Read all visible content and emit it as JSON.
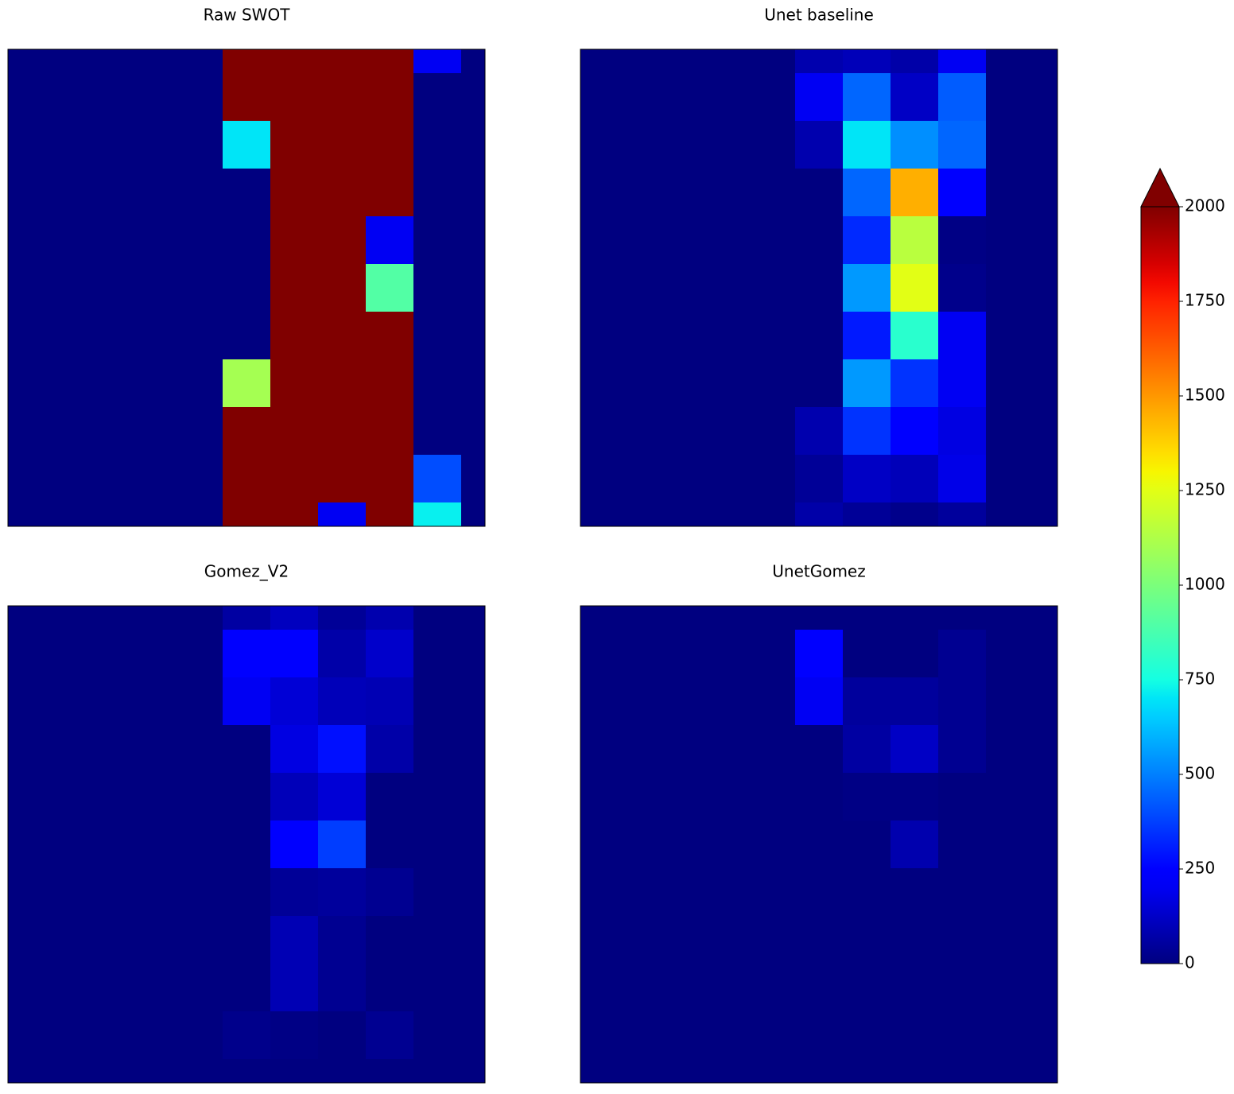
{
  "chart_data": [
    {
      "type": "heatmap",
      "title": "Raw SWOT",
      "z": [
        [
          0,
          0,
          0,
          0,
          0,
          2000,
          2000,
          2000,
          2000,
          200,
          0
        ],
        [
          0,
          0,
          0,
          0,
          0,
          2000,
          2000,
          2000,
          2000,
          0,
          0
        ],
        [
          0,
          0,
          0,
          0,
          0,
          700,
          2000,
          2000,
          2000,
          0,
          0
        ],
        [
          0,
          0,
          0,
          0,
          0,
          0,
          2000,
          2000,
          2000,
          0,
          0
        ],
        [
          0,
          0,
          0,
          0,
          0,
          0,
          2000,
          2000,
          200,
          0,
          0
        ],
        [
          0,
          0,
          0,
          0,
          0,
          0,
          2000,
          2000,
          900,
          0,
          0
        ],
        [
          0,
          0,
          0,
          0,
          0,
          0,
          2000,
          2000,
          2000,
          0,
          0
        ],
        [
          0,
          0,
          0,
          0,
          0,
          1100,
          2000,
          2000,
          2000,
          0,
          0
        ],
        [
          0,
          0,
          0,
          0,
          0,
          2000,
          2000,
          2000,
          2000,
          0,
          0
        ],
        [
          0,
          0,
          0,
          0,
          0,
          2000,
          2000,
          2000,
          2000,
          400,
          0
        ],
        [
          0,
          0,
          0,
          0,
          0,
          2000,
          2000,
          200,
          2000,
          720,
          0
        ]
      ]
    },
    {
      "type": "heatmap",
      "title": "Unet baseline",
      "z": [
        [
          0,
          0,
          0,
          0,
          0,
          80,
          100,
          70,
          200,
          0,
          0
        ],
        [
          0,
          0,
          0,
          0,
          0,
          200,
          450,
          120,
          430,
          0,
          0
        ],
        [
          0,
          0,
          0,
          0,
          0,
          80,
          700,
          530,
          450,
          0,
          0
        ],
        [
          0,
          0,
          0,
          0,
          0,
          0,
          450,
          1450,
          230,
          0,
          0
        ],
        [
          0,
          0,
          0,
          0,
          0,
          0,
          330,
          1150,
          10,
          0,
          0
        ],
        [
          0,
          0,
          0,
          0,
          0,
          0,
          550,
          1250,
          20,
          0,
          0
        ],
        [
          0,
          0,
          0,
          0,
          0,
          0,
          300,
          800,
          200,
          0,
          0
        ],
        [
          0,
          0,
          0,
          0,
          0,
          0,
          550,
          350,
          200,
          0,
          0
        ],
        [
          0,
          0,
          0,
          0,
          0,
          80,
          350,
          230,
          170,
          0,
          0
        ],
        [
          0,
          0,
          0,
          0,
          0,
          40,
          120,
          100,
          180,
          0,
          0
        ],
        [
          0,
          0,
          0,
          0,
          0,
          70,
          40,
          20,
          50,
          0,
          0
        ]
      ]
    },
    {
      "type": "heatmap",
      "title": "Gomez_V2",
      "z": [
        [
          0,
          0,
          0,
          0,
          0,
          60,
          110,
          40,
          80,
          0,
          0
        ],
        [
          0,
          0,
          0,
          0,
          0,
          250,
          240,
          70,
          130,
          0,
          0
        ],
        [
          0,
          0,
          0,
          0,
          0,
          200,
          150,
          100,
          90,
          0,
          0
        ],
        [
          0,
          0,
          0,
          0,
          0,
          0,
          170,
          280,
          70,
          0,
          0
        ],
        [
          0,
          0,
          0,
          0,
          0,
          0,
          100,
          150,
          0,
          0,
          0
        ],
        [
          0,
          0,
          0,
          0,
          0,
          0,
          250,
          370,
          0,
          0,
          0
        ],
        [
          0,
          0,
          0,
          0,
          0,
          0,
          40,
          50,
          30,
          0,
          0
        ],
        [
          0,
          0,
          0,
          0,
          0,
          0,
          90,
          30,
          0,
          0,
          0
        ],
        [
          0,
          0,
          0,
          0,
          0,
          0,
          90,
          30,
          0,
          0,
          0
        ],
        [
          0,
          0,
          0,
          0,
          0,
          20,
          10,
          0,
          30,
          0,
          0
        ],
        [
          0,
          0,
          0,
          0,
          0,
          0,
          0,
          0,
          0,
          0,
          0
        ]
      ]
    },
    {
      "type": "heatmap",
      "title": "UnetGomez",
      "z": [
        [
          0,
          0,
          0,
          0,
          0,
          0,
          0,
          0,
          0,
          0,
          0
        ],
        [
          0,
          0,
          0,
          0,
          0,
          250,
          0,
          0,
          30,
          0,
          0
        ],
        [
          0,
          0,
          0,
          0,
          0,
          200,
          50,
          50,
          30,
          0,
          0
        ],
        [
          0,
          0,
          0,
          0,
          0,
          0,
          60,
          120,
          30,
          0,
          0
        ],
        [
          0,
          0,
          0,
          0,
          0,
          0,
          10,
          10,
          0,
          0,
          0
        ],
        [
          0,
          0,
          0,
          0,
          0,
          0,
          0,
          80,
          0,
          0,
          0
        ],
        [
          0,
          0,
          0,
          0,
          0,
          0,
          0,
          0,
          0,
          0,
          0
        ],
        [
          0,
          0,
          0,
          0,
          0,
          0,
          0,
          0,
          0,
          0,
          0
        ],
        [
          0,
          0,
          0,
          0,
          0,
          0,
          0,
          0,
          0,
          0,
          0
        ],
        [
          0,
          0,
          0,
          0,
          0,
          0,
          0,
          0,
          0,
          0,
          0
        ],
        [
          0,
          0,
          0,
          0,
          0,
          0,
          0,
          0,
          0,
          0,
          0
        ]
      ]
    }
  ],
  "colorbar": {
    "colormap": "jet",
    "clim": [
      0,
      2000
    ],
    "ticks": [
      0,
      250,
      500,
      750,
      1000,
      1250,
      1500,
      1750,
      2000
    ],
    "extend": "max"
  }
}
